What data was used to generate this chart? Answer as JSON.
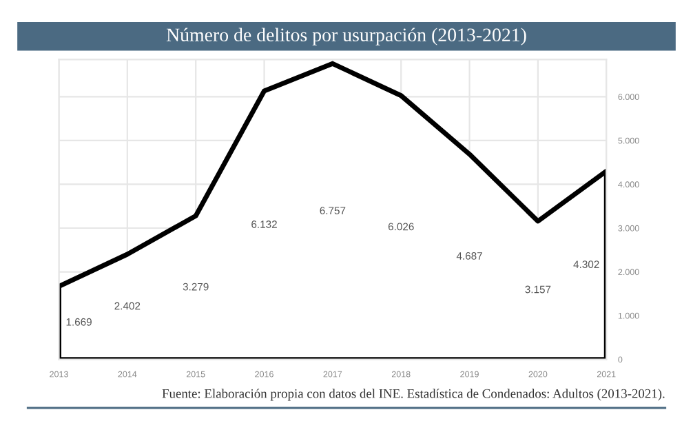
{
  "chart_data": {
    "type": "area",
    "title": "Número de delitos por usurpación (2013-2021)",
    "x": [
      2013,
      2014,
      2015,
      2016,
      2017,
      2018,
      2019,
      2020,
      2021
    ],
    "series": [
      {
        "color": "#000000",
        "values": [
          1669,
          2402,
          3279,
          6132,
          6757,
          6026,
          4687,
          3157,
          4302
        ]
      }
    ],
    "value_labels": [
      "1.669",
      "2.402",
      "3.279",
      "6.132",
      "6.757",
      "6.026",
      "4.687",
      "3.157",
      "4.302"
    ],
    "xlim": [
      2013,
      2021
    ],
    "xticks": [
      2013,
      2014,
      2015,
      2016,
      2017,
      2018,
      2019,
      2020,
      2021
    ],
    "ylim": [
      0,
      6850
    ],
    "yticks": [
      {
        "value": 0,
        "label": "0"
      },
      {
        "value": 1000,
        "label": "1.000"
      },
      {
        "value": 2000,
        "label": "2.000"
      },
      {
        "value": 3000,
        "label": "3.000"
      },
      {
        "value": 4000,
        "label": "4.000"
      },
      {
        "value": 5000,
        "label": "5.000"
      },
      {
        "value": 6000,
        "label": "6.000"
      }
    ],
    "grid": true,
    "legend": false,
    "annotations": [
      "Fuente: Elaboración propia con datos del INE. Estadística de Condenados: Adultos (2013-2021)."
    ]
  }
}
